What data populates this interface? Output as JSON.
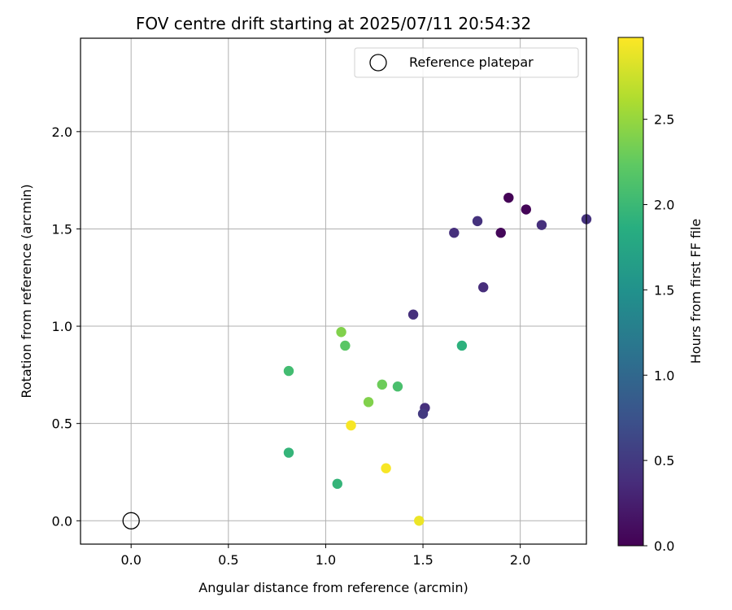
{
  "chart_data": {
    "type": "scatter",
    "title": "FOV centre drift starting at 2025/07/11 20:54:32",
    "xlabel": "Angular distance from reference (arcmin)",
    "ylabel": "Rotation from reference (arcmin)",
    "xlim": [
      -0.26,
      2.34
    ],
    "ylim": [
      -0.12,
      2.48
    ],
    "xticks": [
      "0.0",
      "0.5",
      "1.0",
      "1.5",
      "2.0"
    ],
    "yticks": [
      "0.0",
      "0.5",
      "1.0",
      "1.5",
      "2.0"
    ],
    "grid": true,
    "legend": {
      "placement": "top-right",
      "entries": [
        "Reference platepar"
      ]
    },
    "reference": {
      "x": 0.0,
      "y": 0.0
    },
    "colorbar": {
      "label": "Hours from first FF file",
      "range": [
        0.0,
        2.98
      ],
      "ticks": [
        "0.0",
        "0.5",
        "1.0",
        "1.5",
        "2.0",
        "2.5"
      ],
      "colormap": "viridis"
    },
    "points": [
      {
        "x": 1.94,
        "y": 1.66,
        "c": 0.02
      },
      {
        "x": 2.03,
        "y": 1.6,
        "c": 0.03
      },
      {
        "x": 1.9,
        "y": 1.48,
        "c": 0.05
      },
      {
        "x": 2.11,
        "y": 1.52,
        "c": 0.4
      },
      {
        "x": 2.34,
        "y": 1.55,
        "c": 0.42
      },
      {
        "x": 1.78,
        "y": 1.54,
        "c": 0.42
      },
      {
        "x": 1.66,
        "y": 1.48,
        "c": 0.4
      },
      {
        "x": 1.81,
        "y": 1.2,
        "c": 0.38
      },
      {
        "x": 1.45,
        "y": 1.06,
        "c": 0.4
      },
      {
        "x": 1.51,
        "y": 0.58,
        "c": 0.4
      },
      {
        "x": 1.5,
        "y": 0.55,
        "c": 0.5
      },
      {
        "x": 1.7,
        "y": 0.9,
        "c": 1.9
      },
      {
        "x": 0.81,
        "y": 0.77,
        "c": 2.05
      },
      {
        "x": 0.81,
        "y": 0.35,
        "c": 1.95
      },
      {
        "x": 1.06,
        "y": 0.19,
        "c": 1.95
      },
      {
        "x": 1.37,
        "y": 0.69,
        "c": 2.1
      },
      {
        "x": 1.29,
        "y": 0.7,
        "c": 2.3
      },
      {
        "x": 1.22,
        "y": 0.61,
        "c": 2.4
      },
      {
        "x": 1.1,
        "y": 0.9,
        "c": 2.2
      },
      {
        "x": 1.08,
        "y": 0.97,
        "c": 2.4
      },
      {
        "x": 1.13,
        "y": 0.49,
        "c": 2.95
      },
      {
        "x": 1.31,
        "y": 0.27,
        "c": 2.95
      },
      {
        "x": 1.48,
        "y": 0.0,
        "c": 2.9
      }
    ]
  }
}
